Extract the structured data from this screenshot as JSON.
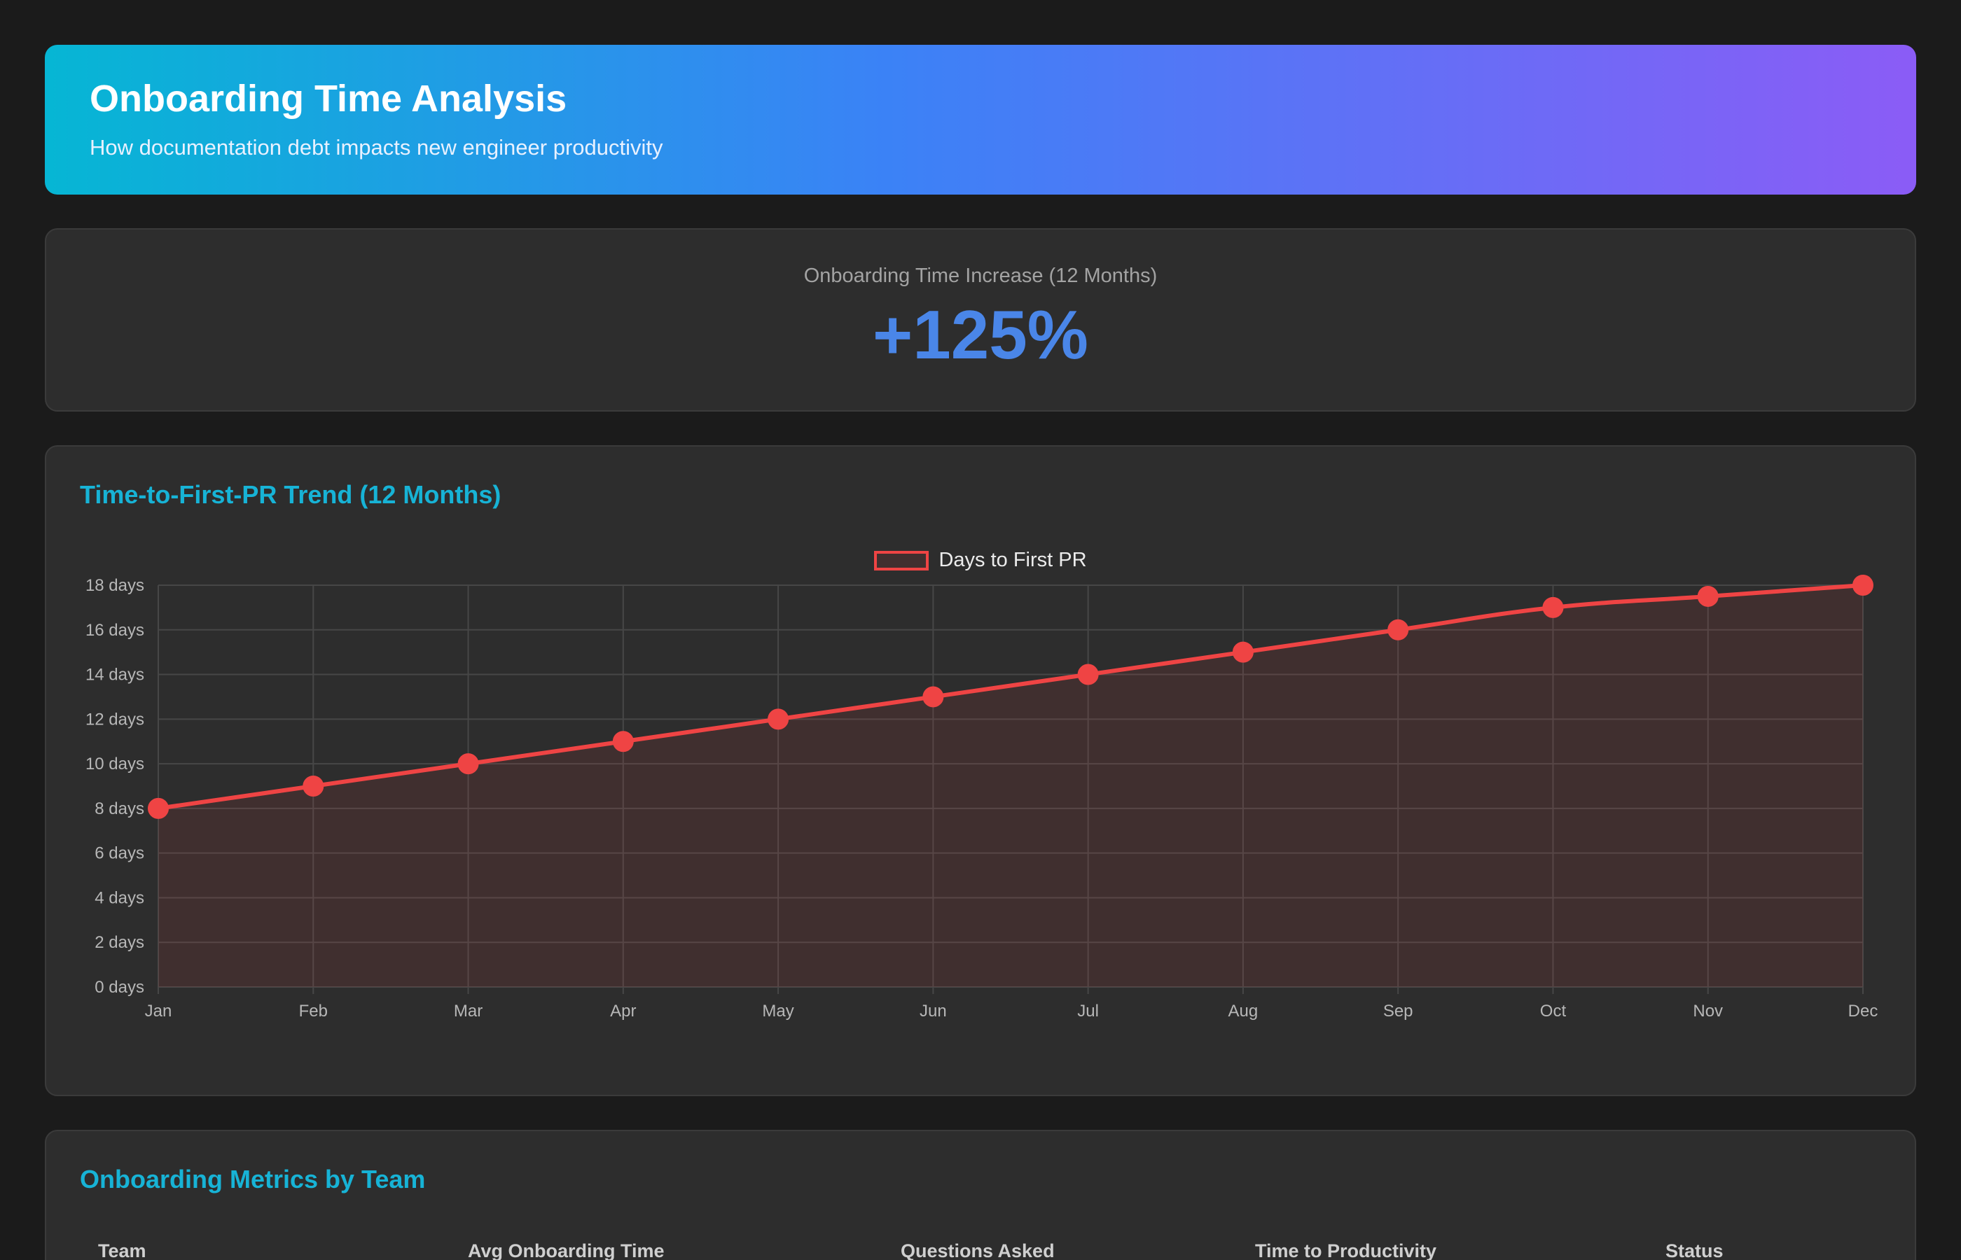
{
  "header": {
    "title": "Onboarding Time Analysis",
    "subtitle": "How documentation debt impacts new engineer productivity"
  },
  "kpi": {
    "label": "Onboarding Time Increase (12 Months)",
    "value": "+125%"
  },
  "chart_card": {
    "title": "Time-to-First-PR Trend (12 Months)"
  },
  "chart_data": {
    "type": "line",
    "categories": [
      "Jan",
      "Feb",
      "Mar",
      "Apr",
      "May",
      "Jun",
      "Jul",
      "Aug",
      "Sep",
      "Oct",
      "Nov",
      "Dec"
    ],
    "series": [
      {
        "name": "Days to First PR",
        "values": [
          8,
          9,
          10,
          11,
          12,
          13,
          14,
          15,
          16,
          17,
          17.5,
          18
        ],
        "color": "#ef4444",
        "fill": true
      }
    ],
    "ylim": [
      0,
      18
    ],
    "y_ticks": [
      0,
      2,
      4,
      6,
      8,
      10,
      12,
      14,
      16,
      18
    ],
    "y_tick_suffix": " days",
    "grid": true,
    "legend_position": "top-center"
  },
  "table_card": {
    "title": "Onboarding Metrics by Team",
    "columns": [
      "Team",
      "Avg Onboarding Time",
      "Questions Asked",
      "Time to Productivity",
      "Status"
    ]
  },
  "colors": {
    "background": "#1b1b1b",
    "card": "#2d2d2d",
    "accent": "#17b3d6",
    "kpi": "#4a86e8",
    "series": "#ef4444"
  }
}
